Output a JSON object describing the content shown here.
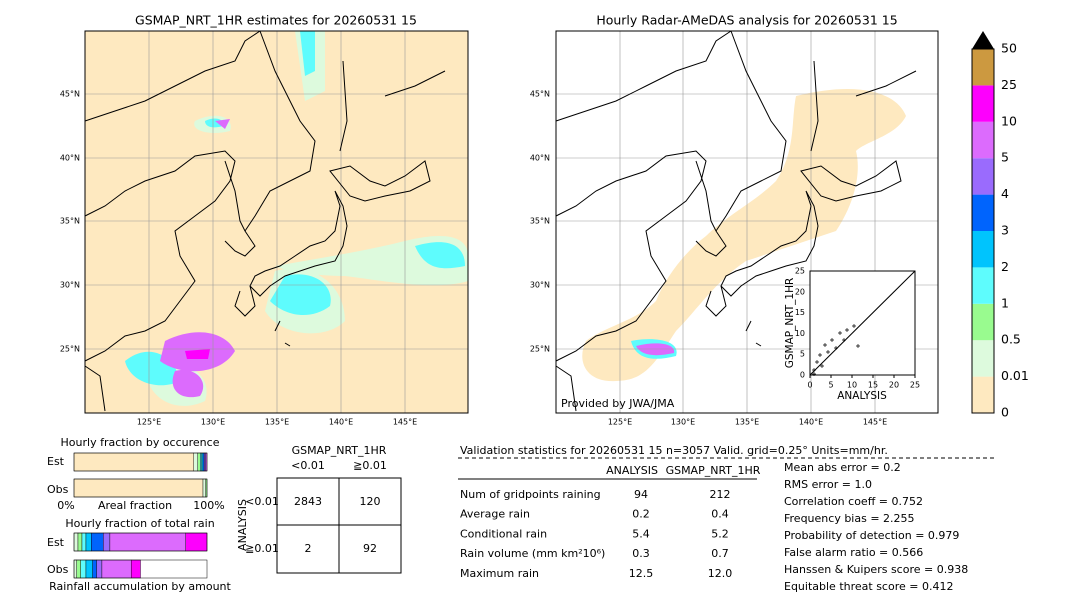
{
  "left_map": {
    "title": "GSMAP_NRT_1HR estimates for 20260531 15",
    "lat_labels": [
      "45°N",
      "40°N",
      "35°N",
      "30°N",
      "25°N"
    ],
    "lon_labels": [
      "125°E",
      "130°E",
      "135°E",
      "140°E",
      "145°E"
    ]
  },
  "right_map": {
    "title": "Hourly Radar-AMeDAS analysis for 20260531 15",
    "lat_labels": [
      "45°N",
      "40°N",
      "35°N",
      "30°N",
      "25°N"
    ],
    "lon_labels": [
      "125°E",
      "130°E",
      "135°E",
      "140°E",
      "145°E"
    ],
    "credit": "Provided by JWA/JMA"
  },
  "scatter": {
    "xlabel": "ANALYSIS",
    "ylabel": "GSMAP_NRT_1HR",
    "lim": [
      0,
      25
    ],
    "ticks": [
      0,
      5,
      10,
      15,
      20,
      25
    ]
  },
  "colorbar": {
    "levels": [
      "0",
      "0.01",
      "0.5",
      "1",
      "2",
      "3",
      "4",
      "5",
      "10",
      "25",
      "50"
    ],
    "colors": [
      "#fee9c0",
      "#ddfadd",
      "#99fb8f",
      "#5efcfd",
      "#00c4fd",
      "#0064fd",
      "#9a6bfd",
      "#dc6bfd",
      "#fd00fd",
      "#cc9940"
    ]
  },
  "occurrence": {
    "title": "Hourly fraction by occurence",
    "rows": [
      "Est",
      "Obs"
    ],
    "axis": [
      "0%",
      "Areal fraction",
      "100%"
    ],
    "values": [
      [
        90,
        3,
        2,
        1,
        1,
        1,
        1,
        1,
        0,
        0
      ],
      [
        97,
        2,
        1,
        0,
        0,
        0,
        0,
        0,
        0,
        0
      ]
    ]
  },
  "total_rain": {
    "title": "Hourly fraction of total rain",
    "rows": [
      "Est",
      "Obs"
    ],
    "footer": "Rainfall accumulation by amount",
    "values": [
      [
        0,
        3,
        3,
        3,
        4,
        9,
        5,
        57,
        16,
        0
      ],
      [
        0,
        2,
        3,
        4,
        5,
        3,
        4,
        22,
        7,
        0
      ]
    ]
  },
  "contingency": {
    "title": "GSMAP_NRT_1HR",
    "ylabel": "ANALYSIS",
    "cols": [
      "<0.01",
      "≧0.01"
    ],
    "rows": [
      {
        "label": "<0.01",
        "cells": [
          "2843",
          "120"
        ]
      },
      {
        "label": "≧0.01",
        "cells": [
          "2",
          "92"
        ]
      }
    ]
  },
  "validation": {
    "header": "Validation statistics for 20260531 15  n=3057 Valid. grid=0.25° Units=mm/hr.",
    "columns": [
      "ANALYSIS",
      "GSMAP_NRT_1HR"
    ],
    "rows": [
      [
        "Num of gridpoints raining",
        "94",
        "212"
      ],
      [
        "Average rain",
        "0.2",
        "0.4"
      ],
      [
        "Conditional rain",
        "5.4",
        "5.2"
      ],
      [
        "Rain volume (mm km²10⁶)",
        "0.3",
        "0.7"
      ],
      [
        "Maximum rain",
        "12.5",
        "12.0"
      ]
    ],
    "scores": [
      "Mean abs error =    0.2",
      "RMS error =    1.0",
      "Correlation coeff =  0.752",
      "Frequency bias =  2.255",
      "Probability of detection =  0.979",
      "False alarm ratio =  0.566",
      "Hanssen & Kuipers score =  0.938",
      "Equitable threat score =  0.412"
    ]
  }
}
